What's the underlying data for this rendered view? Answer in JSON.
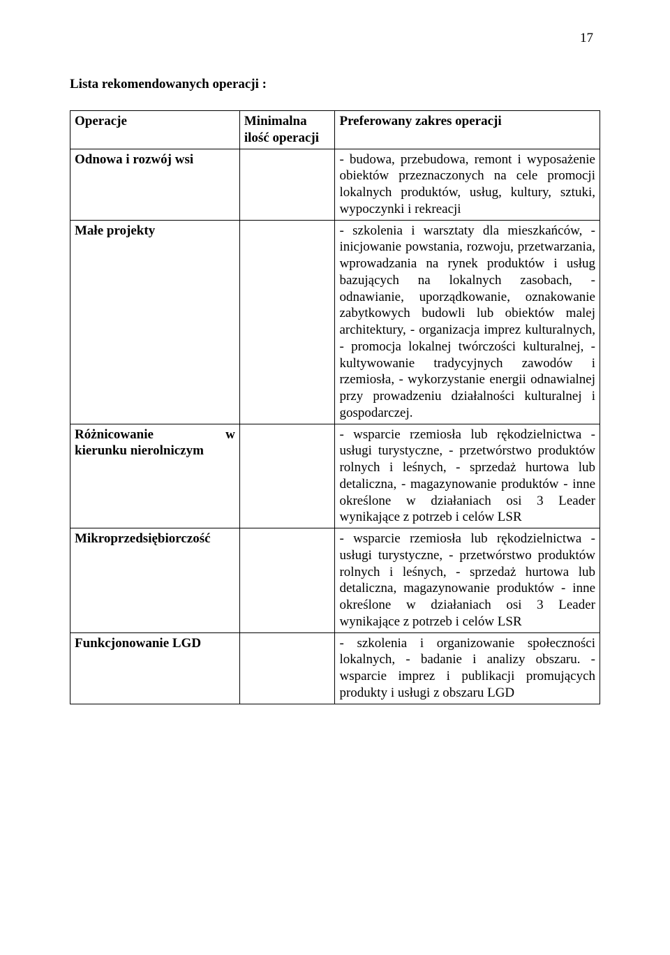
{
  "page_number": "17",
  "title": "Lista rekomendowanych operacji :",
  "headers": {
    "col1": "Operacje",
    "col2": "Minimalna ilość operacji",
    "col3": "Preferowany zakres operacji"
  },
  "rows": [
    {
      "operation": "Odnowa i rozwój wsi",
      "minimal": "",
      "scope": "- budowa, przebudowa, remont i wyposażenie obiektów przeznaczonych na cele promocji lokalnych produktów, usług, kultury, sztuki, wypoczynki i rekreacji"
    },
    {
      "operation": "Małe projekty",
      "minimal": "",
      "scope": "- szkolenia i warsztaty dla mieszkańców,\n- inicjowanie powstania, rozwoju, przetwarzania, wprowadzania na rynek produktów i usług bazujących na lokalnych zasobach,\n- odnawianie, uporządkowanie, oznakowanie zabytkowych budowli lub obiektów malej architektury,\n- organizacja imprez kulturalnych,\n- promocja lokalnej twórczości kulturalnej,\n- kultywowanie tradycyjnych zawodów i rzemiosła,\n- wykorzystanie energii odnawialnej przy prowadzeniu działalności kulturalnej i gospodarczej."
    },
    {
      "operation": "Różnicowanie w kierunku nierolniczym",
      "minimal": "",
      "scope": "- wsparcie rzemiosła lub rękodzielnictwa\n- usługi turystyczne,\n- przetwórstwo produktów rolnych i leśnych,\n- sprzedaż hurtowa lub detaliczna,\n- magazynowanie produktów\n- inne określone w działaniach osi 3 Leader wynikające z potrzeb i celów LSR"
    },
    {
      "operation": "Mikroprzedsiębiorczość",
      "minimal": "",
      "scope": "- wsparcie rzemiosła lub rękodzielnictwa\n- usługi turystyczne,\n- przetwórstwo produktów rolnych i leśnych,\n- sprzedaż hurtowa lub detaliczna, magazynowanie produktów\n- inne określone w działaniach osi 3 Leader wynikające z potrzeb i celów LSR"
    },
    {
      "operation": "Funkcjonowanie LGD",
      "minimal": "",
      "scope": "- szkolenia i organizowanie społeczności lokalnych,\n- badanie i analizy obszaru.\n-wsparcie imprez i publikacji promujących produkty i usługi z obszaru LGD"
    }
  ]
}
